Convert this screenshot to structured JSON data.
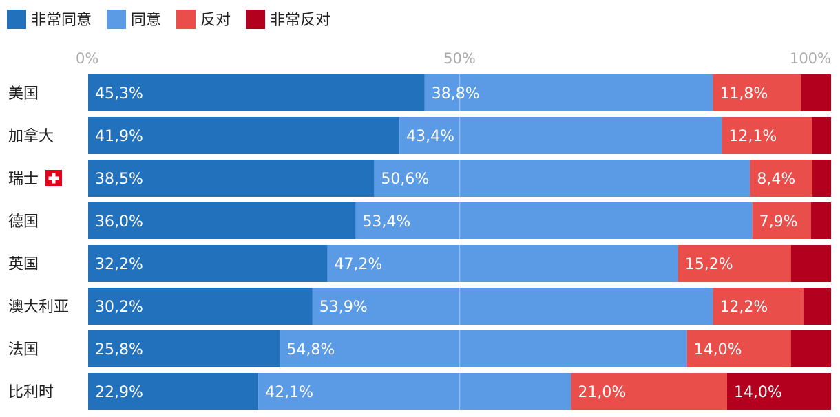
{
  "chart_data": {
    "type": "bar",
    "orientation": "horizontal",
    "stacked": true,
    "categories": [
      "美国",
      "加拿大",
      "瑞士",
      "德国",
      "英国",
      "澳大利亚",
      "法国",
      "比利时"
    ],
    "category_flags": {
      "瑞士": "swiss-flag"
    },
    "series": [
      {
        "name": "非常同意",
        "color": "#2171bc",
        "values": [
          45.3,
          41.9,
          38.5,
          36.0,
          32.2,
          30.2,
          25.8,
          22.9
        ]
      },
      {
        "name": "同意",
        "color": "#5b9be6",
        "values": [
          38.8,
          43.4,
          50.6,
          53.4,
          47.2,
          53.9,
          54.8,
          42.1
        ]
      },
      {
        "name": "反对",
        "color": "#ea4e4b",
        "values": [
          11.8,
          12.1,
          8.4,
          7.9,
          15.2,
          12.2,
          14.0,
          21.0
        ]
      },
      {
        "name": "非常反对",
        "color": "#b2001e",
        "values": [
          4.1,
          2.6,
          2.5,
          2.7,
          5.4,
          3.7,
          5.4,
          14.0
        ]
      }
    ],
    "data_labels": [
      [
        "45,3%",
        "38,8%",
        "11,8%",
        ""
      ],
      [
        "41,9%",
        "43,4%",
        "12,1%",
        ""
      ],
      [
        "38,5%",
        "50,6%",
        "8,4%",
        ""
      ],
      [
        "36,0%",
        "53,4%",
        "7,9%",
        ""
      ],
      [
        "32,2%",
        "47,2%",
        "15,2%",
        ""
      ],
      [
        "30,2%",
        "53,9%",
        "12,2%",
        ""
      ],
      [
        "25,8%",
        "54,8%",
        "14,0%",
        ""
      ],
      [
        "22,9%",
        "42,1%",
        "21,0%",
        "14,0%"
      ]
    ],
    "xlim": [
      0,
      100
    ],
    "x_ticks": [
      0,
      50,
      100
    ],
    "x_tick_labels": [
      "0%",
      "50%",
      "100%"
    ],
    "legend_position": "top-left",
    "grid": true
  }
}
